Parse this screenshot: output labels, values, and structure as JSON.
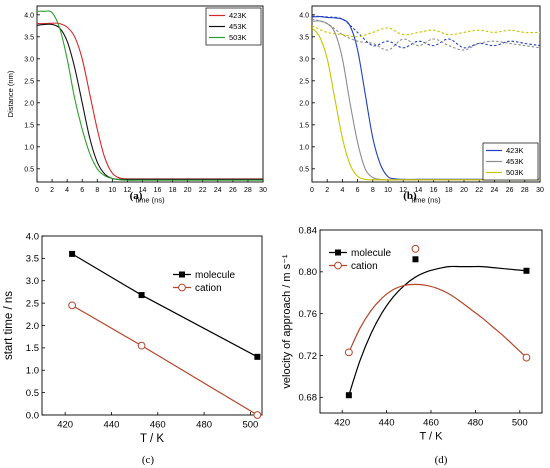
{
  "chart_data": [
    {
      "panel": "(a)",
      "type": "line",
      "xlabel": "time (ns)",
      "ylabel": "Distance (nm)",
      "xlim": [
        0,
        30
      ],
      "ylim": [
        0.2,
        4.2
      ],
      "xticks": [
        "0",
        "2",
        "4",
        "6",
        "8",
        "10",
        "12",
        "14",
        "16",
        "18",
        "20",
        "22",
        "24",
        "26",
        "28",
        "30"
      ],
      "yticks": [
        "0.5",
        "1.0",
        "1.5",
        "2.0",
        "2.5",
        "3.0",
        "3.5",
        "4.0"
      ],
      "legend_position": "top-right",
      "grid": false,
      "series": [
        {
          "name": "423K",
          "color": "#d62728",
          "dash": "solid",
          "x": [
            0,
            1,
            2,
            3,
            4,
            5,
            6,
            7,
            8,
            9,
            10,
            11,
            12,
            13,
            14,
            16,
            20,
            30
          ],
          "y": [
            3.8,
            3.8,
            3.81,
            3.8,
            3.72,
            3.5,
            3.0,
            2.2,
            1.4,
            0.75,
            0.4,
            0.29,
            0.27,
            0.27,
            0.27,
            0.27,
            0.27,
            0.27
          ]
        },
        {
          "name": "453K",
          "color": "#111111",
          "dash": "solid",
          "x": [
            0,
            1,
            2,
            3,
            4,
            5,
            6,
            7,
            8,
            9,
            10,
            11,
            12,
            13,
            14,
            16,
            20,
            30
          ],
          "y": [
            3.76,
            3.78,
            3.78,
            3.7,
            3.4,
            2.8,
            2.0,
            1.2,
            0.65,
            0.38,
            0.28,
            0.26,
            0.26,
            0.26,
            0.26,
            0.26,
            0.26,
            0.26
          ]
        },
        {
          "name": "503K",
          "color": "#2ca02c",
          "dash": "solid",
          "x": [
            0,
            1,
            2,
            3,
            4,
            5,
            6,
            7,
            8,
            9,
            10,
            11,
            12,
            14,
            16,
            20,
            30
          ],
          "y": [
            4.08,
            4.08,
            4.05,
            3.7,
            3.0,
            2.1,
            1.4,
            0.85,
            0.5,
            0.34,
            0.28,
            0.25,
            0.24,
            0.24,
            0.24,
            0.24,
            0.24
          ]
        }
      ]
    },
    {
      "panel": "(b)",
      "type": "line",
      "xlabel": "time (ns)",
      "ylabel": "",
      "xlim": [
        0,
        30
      ],
      "ylim": [
        0.2,
        4.2
      ],
      "xticks": [
        "0",
        "2",
        "4",
        "6",
        "8",
        "10",
        "12",
        "14",
        "16",
        "18",
        "20",
        "22",
        "24",
        "26",
        "28",
        "30"
      ],
      "yticks": [
        "0.5",
        "1.0",
        "1.5",
        "2.0",
        "2.5",
        "3.0",
        "3.5",
        "4.0"
      ],
      "legend_position": "bottom-right",
      "grid": false,
      "series": [
        {
          "name": "423K",
          "color": "#1f3fbf",
          "dash": "solid",
          "x": [
            0,
            1,
            2,
            3,
            4,
            5,
            6,
            7,
            8,
            9,
            10,
            11,
            12,
            14,
            16,
            20,
            30
          ],
          "y": [
            3.95,
            3.96,
            3.94,
            3.93,
            3.9,
            3.75,
            3.2,
            2.2,
            1.2,
            0.6,
            0.32,
            0.27,
            0.26,
            0.26,
            0.26,
            0.26,
            0.26
          ]
        },
        {
          "name": "453K",
          "color": "#8c8c8c",
          "dash": "solid",
          "x": [
            0,
            1,
            2,
            3,
            4,
            5,
            6,
            7,
            8,
            9,
            10,
            12,
            14,
            20,
            30
          ],
          "y": [
            3.85,
            3.86,
            3.8,
            3.6,
            3.0,
            2.0,
            1.1,
            0.5,
            0.3,
            0.26,
            0.25,
            0.25,
            0.25,
            0.25,
            0.25
          ]
        },
        {
          "name": "503K",
          "color": "#c9c400",
          "dash": "solid",
          "x": [
            0,
            1,
            2,
            3,
            4,
            5,
            6,
            7,
            8,
            10,
            12,
            20,
            30
          ],
          "y": [
            3.7,
            3.5,
            3.0,
            2.1,
            1.2,
            0.6,
            0.33,
            0.26,
            0.25,
            0.25,
            0.25,
            0.25,
            0.25
          ]
        },
        {
          "name": "",
          "color": "#1f3fbf",
          "dash": "dotted",
          "x": [
            0,
            2,
            4,
            6,
            8,
            10,
            12,
            14,
            16,
            18,
            20,
            22,
            24,
            26,
            28,
            30
          ],
          "y": [
            3.97,
            3.95,
            3.9,
            3.6,
            3.3,
            3.4,
            3.25,
            3.4,
            3.3,
            3.45,
            3.25,
            3.35,
            3.3,
            3.4,
            3.35,
            3.3
          ]
        },
        {
          "name": "",
          "color": "#8c8c8c",
          "dash": "dotted",
          "x": [
            0,
            2,
            4,
            6,
            8,
            10,
            12,
            14,
            16,
            18,
            20,
            22,
            24,
            26,
            28,
            30
          ],
          "y": [
            3.9,
            3.8,
            3.55,
            3.4,
            3.35,
            3.2,
            3.45,
            3.3,
            3.45,
            3.3,
            3.2,
            3.35,
            3.4,
            3.35,
            3.3,
            3.25
          ]
        },
        {
          "name": "",
          "color": "#c9c400",
          "dash": "dotted",
          "x": [
            0,
            2,
            4,
            6,
            8,
            10,
            12,
            14,
            16,
            18,
            20,
            22,
            24,
            26,
            28,
            30
          ],
          "y": [
            3.75,
            3.6,
            3.55,
            3.5,
            3.6,
            3.7,
            3.55,
            3.6,
            3.65,
            3.55,
            3.6,
            3.65,
            3.6,
            3.65,
            3.6,
            3.6
          ]
        }
      ]
    },
    {
      "panel": "(c)",
      "type": "line",
      "xlabel": "T / K",
      "ylabel": "start time / ns",
      "xlim": [
        410,
        505
      ],
      "ylim": [
        0,
        4.0
      ],
      "xticks": [
        "420",
        "440",
        "460",
        "480",
        "500"
      ],
      "yticks": [
        "0.0",
        "0.5",
        "1.0",
        "1.5",
        "2.0",
        "2.5",
        "3.0",
        "3.5",
        "4.0"
      ],
      "legend_position": "top-right",
      "grid": false,
      "series": [
        {
          "name": "molecule",
          "color": "#000000",
          "marker": "filled-square",
          "x": [
            423,
            453,
            503
          ],
          "y": [
            3.6,
            2.68,
            1.3
          ]
        },
        {
          "name": "cation",
          "color": "#b5462a",
          "marker": "open-circle",
          "x": [
            423,
            453,
            503
          ],
          "y": [
            2.45,
            1.55,
            0.0
          ]
        }
      ]
    },
    {
      "panel": "(d)",
      "type": "line",
      "xlabel": "T / K",
      "ylabel": "velocity of approach / m s⁻¹",
      "xlim": [
        410,
        510
      ],
      "ylim": [
        0.665,
        0.84
      ],
      "xticks": [
        "420",
        "440",
        "460",
        "480",
        "500"
      ],
      "yticks": [
        "0.68",
        "0.72",
        "0.76",
        "0.80",
        "0.84"
      ],
      "legend_position": "top-left",
      "grid": false,
      "series": [
        {
          "name": "molecule",
          "color": "#000000",
          "marker": "filled-square",
          "x": [
            423,
            453,
            503
          ],
          "y": [
            0.682,
            0.812,
            0.801
          ],
          "fit_x": [
            423,
            428,
            433,
            438,
            443,
            448,
            453,
            458,
            463,
            468,
            473,
            478,
            483,
            488,
            493,
            498,
            503
          ],
          "fit_y": [
            0.682,
            0.715,
            0.741,
            0.761,
            0.776,
            0.787,
            0.795,
            0.8,
            0.803,
            0.805,
            0.805,
            0.805,
            0.805,
            0.804,
            0.803,
            0.802,
            0.801
          ]
        },
        {
          "name": "cation",
          "color": "#b5462a",
          "marker": "open-circle",
          "x": [
            423,
            453,
            503
          ],
          "y": [
            0.723,
            0.822,
            0.718
          ],
          "fit_x": [
            423,
            428,
            433,
            438,
            443,
            448,
            453,
            458,
            463,
            468,
            473,
            478,
            483,
            488,
            493,
            498,
            503
          ],
          "fit_y": [
            0.723,
            0.746,
            0.763,
            0.775,
            0.783,
            0.787,
            0.788,
            0.787,
            0.784,
            0.779,
            0.772,
            0.764,
            0.756,
            0.747,
            0.738,
            0.728,
            0.718
          ]
        }
      ]
    }
  ],
  "captions": [
    "(a)",
    "(b)",
    "(c)",
    "(d)"
  ]
}
